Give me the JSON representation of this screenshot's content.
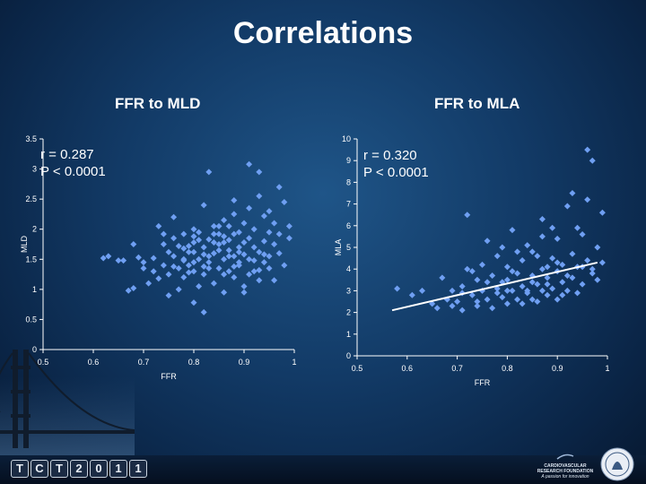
{
  "title": "Correlations",
  "left_chart_subtitle": "FFR to MLD",
  "right_chart_subtitle": "FFR to MLA",
  "left_stats": {
    "r": "r = 0.287",
    "p": "P < 0.0001"
  },
  "right_stats": {
    "r": "r = 0.320",
    "p": "P < 0.0001"
  },
  "footer": {
    "logo_letters": [
      "T",
      "C",
      "T",
      "2",
      "0",
      "1",
      "1"
    ],
    "org_line1": "CARDIOVASCULAR",
    "org_line2": "RESEARCH FOUNDATION",
    "org_tagline": "A passion for innovation"
  },
  "colors": {
    "point": "#6f9ff2",
    "axis": "#ffffff",
    "trend": "#ffffff"
  },
  "chart_data": [
    {
      "type": "scatter",
      "title": "FFR to MLD",
      "xlabel": "FFR",
      "ylabel": "MLD",
      "xlim": [
        0.5,
        1
      ],
      "ylim": [
        0,
        3.5
      ],
      "xticks": [
        0.5,
        0.6,
        0.7,
        0.8,
        0.9,
        1
      ],
      "xtick_labels": [
        "0.5",
        "0.6",
        "0.7",
        "0.8",
        "0.9",
        "1"
      ],
      "yticks": [
        0,
        0.5,
        1,
        1.5,
        2,
        2.5,
        3,
        3.5
      ],
      "ytick_labels": [
        "0",
        "0.5",
        "1",
        "1.5",
        "2",
        "2.5",
        "3",
        "3.5"
      ],
      "annotations": [
        "r = 0.287",
        "P < 0.0001"
      ],
      "points": [
        [
          0.62,
          1.52
        ],
        [
          0.63,
          1.55
        ],
        [
          0.65,
          1.48
        ],
        [
          0.66,
          1.48
        ],
        [
          0.67,
          0.98
        ],
        [
          0.68,
          1.02
        ],
        [
          0.69,
          1.53
        ],
        [
          0.7,
          1.35
        ],
        [
          0.71,
          1.1
        ],
        [
          0.72,
          1.52
        ],
        [
          0.72,
          1.3
        ],
        [
          0.73,
          1.18
        ],
        [
          0.73,
          2.05
        ],
        [
          0.74,
          1.4
        ],
        [
          0.74,
          1.75
        ],
        [
          0.75,
          1.25
        ],
        [
          0.75,
          0.9
        ],
        [
          0.75,
          1.62
        ],
        [
          0.76,
          2.2
        ],
        [
          0.76,
          1.55
        ],
        [
          0.77,
          1.0
        ],
        [
          0.77,
          1.35
        ],
        [
          0.78,
          1.92
        ],
        [
          0.78,
          1.5
        ],
        [
          0.78,
          1.2
        ],
        [
          0.79,
          1.72
        ],
        [
          0.79,
          1.4
        ],
        [
          0.8,
          1.88
        ],
        [
          0.8,
          1.3
        ],
        [
          0.8,
          1.62
        ],
        [
          0.81,
          1.05
        ],
        [
          0.81,
          1.5
        ],
        [
          0.81,
          1.95
        ],
        [
          0.82,
          2.4
        ],
        [
          0.82,
          1.7
        ],
        [
          0.82,
          1.25
        ],
        [
          0.83,
          1.83
        ],
        [
          0.83,
          1.45
        ],
        [
          0.83,
          1.55
        ],
        [
          0.84,
          2.05
        ],
        [
          0.84,
          1.6
        ],
        [
          0.84,
          1.1
        ],
        [
          0.85,
          1.92
        ],
        [
          0.85,
          1.35
        ],
        [
          0.85,
          1.75
        ],
        [
          0.86,
          2.15
        ],
        [
          0.86,
          1.5
        ],
        [
          0.86,
          0.95
        ],
        [
          0.87,
          1.65
        ],
        [
          0.87,
          1.82
        ],
        [
          0.87,
          1.3
        ],
        [
          0.88,
          2.25
        ],
        [
          0.88,
          1.55
        ],
        [
          0.88,
          1.2
        ],
        [
          0.89,
          1.95
        ],
        [
          0.89,
          1.7
        ],
        [
          0.89,
          1.4
        ],
        [
          0.9,
          2.1
        ],
        [
          0.9,
          1.58
        ],
        [
          0.9,
          1.05
        ],
        [
          0.91,
          1.85
        ],
        [
          0.91,
          1.5
        ],
        [
          0.91,
          2.35
        ],
        [
          0.92,
          1.7
        ],
        [
          0.92,
          1.3
        ],
        [
          0.92,
          2.0
        ],
        [
          0.93,
          1.62
        ],
        [
          0.93,
          2.55
        ],
        [
          0.93,
          1.15
        ],
        [
          0.94,
          1.8
        ],
        [
          0.94,
          1.45
        ],
        [
          0.95,
          2.3
        ],
        [
          0.95,
          1.95
        ],
        [
          0.95,
          1.55
        ],
        [
          0.96,
          1.75
        ],
        [
          0.96,
          2.1
        ],
        [
          0.97,
          1.6
        ],
        [
          0.97,
          2.7
        ],
        [
          0.98,
          2.45
        ],
        [
          0.98,
          1.4
        ],
        [
          0.99,
          1.85
        ],
        [
          0.99,
          2.05
        ],
        [
          0.83,
          2.95
        ],
        [
          0.78,
          1.48
        ],
        [
          0.8,
          1.78
        ],
        [
          0.86,
          1.78
        ],
        [
          0.87,
          2.05
        ],
        [
          0.89,
          1.62
        ],
        [
          0.8,
          2.0
        ],
        [
          0.82,
          1.38
        ],
        [
          0.76,
          1.85
        ],
        [
          0.74,
          1.92
        ],
        [
          0.93,
          2.95
        ],
        [
          0.91,
          3.08
        ],
        [
          0.88,
          1.92
        ],
        [
          0.84,
          1.78
        ],
        [
          0.7,
          1.45
        ],
        [
          0.68,
          1.75
        ],
        [
          0.8,
          0.78
        ],
        [
          0.82,
          0.62
        ],
        [
          0.9,
          0.95
        ],
        [
          0.93,
          1.32
        ],
        [
          0.88,
          2.48
        ],
        [
          0.94,
          2.22
        ],
        [
          0.85,
          1.65
        ],
        [
          0.87,
          1.55
        ],
        [
          0.79,
          1.62
        ],
        [
          0.77,
          1.72
        ],
        [
          0.89,
          1.45
        ],
        [
          0.9,
          1.78
        ],
        [
          0.91,
          1.25
        ],
        [
          0.86,
          1.25
        ],
        [
          0.83,
          1.35
        ],
        [
          0.81,
          1.82
        ],
        [
          0.79,
          1.28
        ],
        [
          0.86,
          1.88
        ],
        [
          0.85,
          2.05
        ],
        [
          0.92,
          1.48
        ],
        [
          0.95,
          1.35
        ],
        [
          0.96,
          1.15
        ],
        [
          0.97,
          1.92
        ],
        [
          0.94,
          1.58
        ],
        [
          0.88,
          1.38
        ],
        [
          0.84,
          1.92
        ],
        [
          0.82,
          1.58
        ],
        [
          0.8,
          1.45
        ],
        [
          0.78,
          1.68
        ],
        [
          0.76,
          1.38
        ]
      ]
    },
    {
      "type": "scatter",
      "title": "FFR to MLA",
      "xlabel": "FFR",
      "ylabel": "MLA",
      "xlim": [
        0.5,
        1
      ],
      "ylim": [
        0,
        10
      ],
      "xticks": [
        0.5,
        0.6,
        0.7,
        0.8,
        0.9,
        1
      ],
      "xtick_labels": [
        "0.5",
        "0.6",
        "0.7",
        "0.8",
        "0.9",
        "1"
      ],
      "yticks": [
        0,
        1,
        2,
        3,
        4,
        5,
        6,
        7,
        8,
        9,
        10
      ],
      "ytick_labels": [
        "0",
        "1",
        "2",
        "3",
        "4",
        "5",
        "6",
        "7",
        "8",
        "9",
        "10"
      ],
      "annotations": [
        "r = 0.320",
        "P < 0.0001"
      ],
      "trendline": {
        "x": [
          0.57,
          0.98
        ],
        "y": [
          2.1,
          4.3
        ]
      },
      "points": [
        [
          0.58,
          3.1
        ],
        [
          0.61,
          2.8
        ],
        [
          0.63,
          3.0
        ],
        [
          0.65,
          2.4
        ],
        [
          0.66,
          2.2
        ],
        [
          0.67,
          3.6
        ],
        [
          0.68,
          2.6
        ],
        [
          0.69,
          3.0
        ],
        [
          0.7,
          2.5
        ],
        [
          0.71,
          3.2
        ],
        [
          0.71,
          2.1
        ],
        [
          0.72,
          6.5
        ],
        [
          0.72,
          4.0
        ],
        [
          0.73,
          2.8
        ],
        [
          0.74,
          3.5
        ],
        [
          0.74,
          2.3
        ],
        [
          0.75,
          4.2
        ],
        [
          0.75,
          3.0
        ],
        [
          0.76,
          2.6
        ],
        [
          0.76,
          5.3
        ],
        [
          0.77,
          3.7
        ],
        [
          0.77,
          2.2
        ],
        [
          0.78,
          4.6
        ],
        [
          0.78,
          3.1
        ],
        [
          0.79,
          2.7
        ],
        [
          0.79,
          5.0
        ],
        [
          0.8,
          3.5
        ],
        [
          0.8,
          2.4
        ],
        [
          0.8,
          4.1
        ],
        [
          0.81,
          3.0
        ],
        [
          0.81,
          5.8
        ],
        [
          0.82,
          3.8
        ],
        [
          0.82,
          2.6
        ],
        [
          0.83,
          4.4
        ],
        [
          0.83,
          3.2
        ],
        [
          0.84,
          5.1
        ],
        [
          0.84,
          2.9
        ],
        [
          0.85,
          3.7
        ],
        [
          0.85,
          4.8
        ],
        [
          0.86,
          3.3
        ],
        [
          0.86,
          2.5
        ],
        [
          0.87,
          4.0
        ],
        [
          0.87,
          6.3
        ],
        [
          0.88,
          3.6
        ],
        [
          0.88,
          2.8
        ],
        [
          0.89,
          4.5
        ],
        [
          0.89,
          3.1
        ],
        [
          0.9,
          5.4
        ],
        [
          0.9,
          3.9
        ],
        [
          0.9,
          2.6
        ],
        [
          0.91,
          4.2
        ],
        [
          0.91,
          3.4
        ],
        [
          0.92,
          6.9
        ],
        [
          0.92,
          3.0
        ],
        [
          0.93,
          4.7
        ],
        [
          0.93,
          3.6
        ],
        [
          0.94,
          5.9
        ],
        [
          0.94,
          2.9
        ],
        [
          0.95,
          4.1
        ],
        [
          0.95,
          3.3
        ],
        [
          0.96,
          7.2
        ],
        [
          0.96,
          4.4
        ],
        [
          0.97,
          3.8
        ],
        [
          0.97,
          9.0
        ],
        [
          0.98,
          5.0
        ],
        [
          0.98,
          3.5
        ],
        [
          0.99,
          4.3
        ],
        [
          0.99,
          6.6
        ],
        [
          0.96,
          9.5
        ],
        [
          0.93,
          7.5
        ],
        [
          0.74,
          2.5
        ],
        [
          0.84,
          3.0
        ],
        [
          0.88,
          3.3
        ],
        [
          0.91,
          2.8
        ],
        [
          0.85,
          2.6
        ],
        [
          0.79,
          3.4
        ],
        [
          0.82,
          4.8
        ],
        [
          0.87,
          5.5
        ],
        [
          0.89,
          5.9
        ],
        [
          0.94,
          4.1
        ],
        [
          0.81,
          3.9
        ],
        [
          0.83,
          2.4
        ],
        [
          0.86,
          4.6
        ],
        [
          0.9,
          4.3
        ],
        [
          0.92,
          3.7
        ],
        [
          0.95,
          5.6
        ],
        [
          0.97,
          4.0
        ],
        [
          0.88,
          4.1
        ],
        [
          0.78,
          2.9
        ],
        [
          0.76,
          3.4
        ],
        [
          0.73,
          3.9
        ],
        [
          0.71,
          2.9
        ],
        [
          0.69,
          2.3
        ],
        [
          0.85,
          3.4
        ],
        [
          0.87,
          3.0
        ],
        [
          0.8,
          3.0
        ]
      ]
    }
  ]
}
